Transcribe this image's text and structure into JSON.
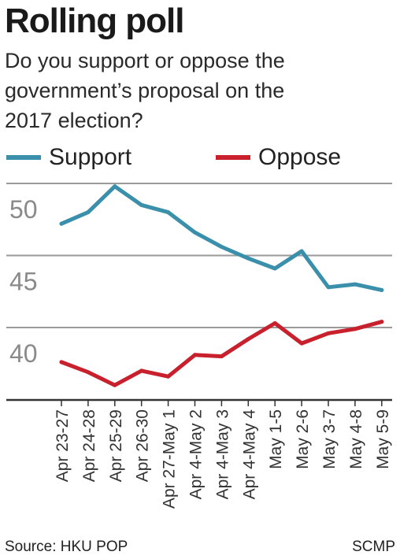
{
  "title": "Rolling poll",
  "subtitle": "Do you support or oppose the government’s proposal on the 2017 election?",
  "legend": {
    "support": "Support",
    "oppose": "Oppose"
  },
  "source": "Source: HKU POP",
  "credit": "SCMP",
  "colors": {
    "support": "#3a8fab",
    "oppose": "#c8202c",
    "grid": "#9a9a9a",
    "ticklabel": "#8a8a8a"
  },
  "chart_data": {
    "type": "line",
    "categories": [
      "Apr 23-27",
      "Apr 24-28",
      "Apr 25-29",
      "Apr 26-30",
      "Apr 27-May 1",
      "Apr 4-May 2",
      "Apr 4-May 3",
      "Apr 4-May 4",
      "May 1-5",
      "May 2-6",
      "May 3-7",
      "May 4-8",
      "May 5-9"
    ],
    "series": [
      {
        "name": "Support",
        "values": [
          47.2,
          48.0,
          49.8,
          48.5,
          48.0,
          46.6,
          45.6,
          44.8,
          44.1,
          45.3,
          42.8,
          43.0,
          42.6
        ]
      },
      {
        "name": "Oppose",
        "values": [
          37.6,
          36.9,
          36.0,
          37.0,
          36.6,
          38.1,
          38.0,
          39.2,
          40.3,
          38.9,
          39.6,
          39.9,
          40.4
        ]
      }
    ],
    "yticks": [
      40,
      45,
      50
    ],
    "ylim": [
      35,
      50.7
    ],
    "grid": true,
    "legend_position": "top"
  }
}
